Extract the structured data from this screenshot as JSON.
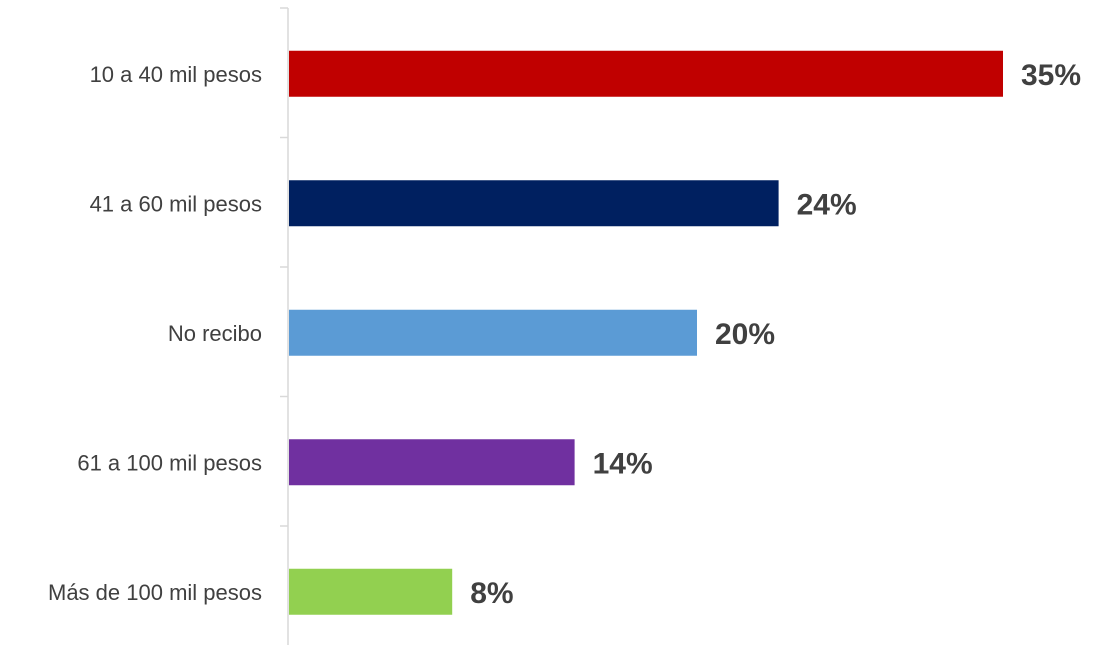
{
  "chart_data": {
    "type": "bar",
    "orientation": "horizontal",
    "categories": [
      "10 a 40 mil pesos",
      "41 a 60 mil pesos",
      "No recibo",
      "61 a 100 mil pesos",
      "Más de 100 mil pesos"
    ],
    "values": [
      35,
      24,
      20,
      14,
      8
    ],
    "value_labels": [
      "35%",
      "24%",
      "20%",
      "14%",
      "8%"
    ],
    "colors": [
      "#c00000",
      "#002060",
      "#5b9bd5",
      "#7030a0",
      "#92d050"
    ],
    "xlim": [
      0,
      35
    ],
    "grid": false,
    "legend": "none"
  }
}
